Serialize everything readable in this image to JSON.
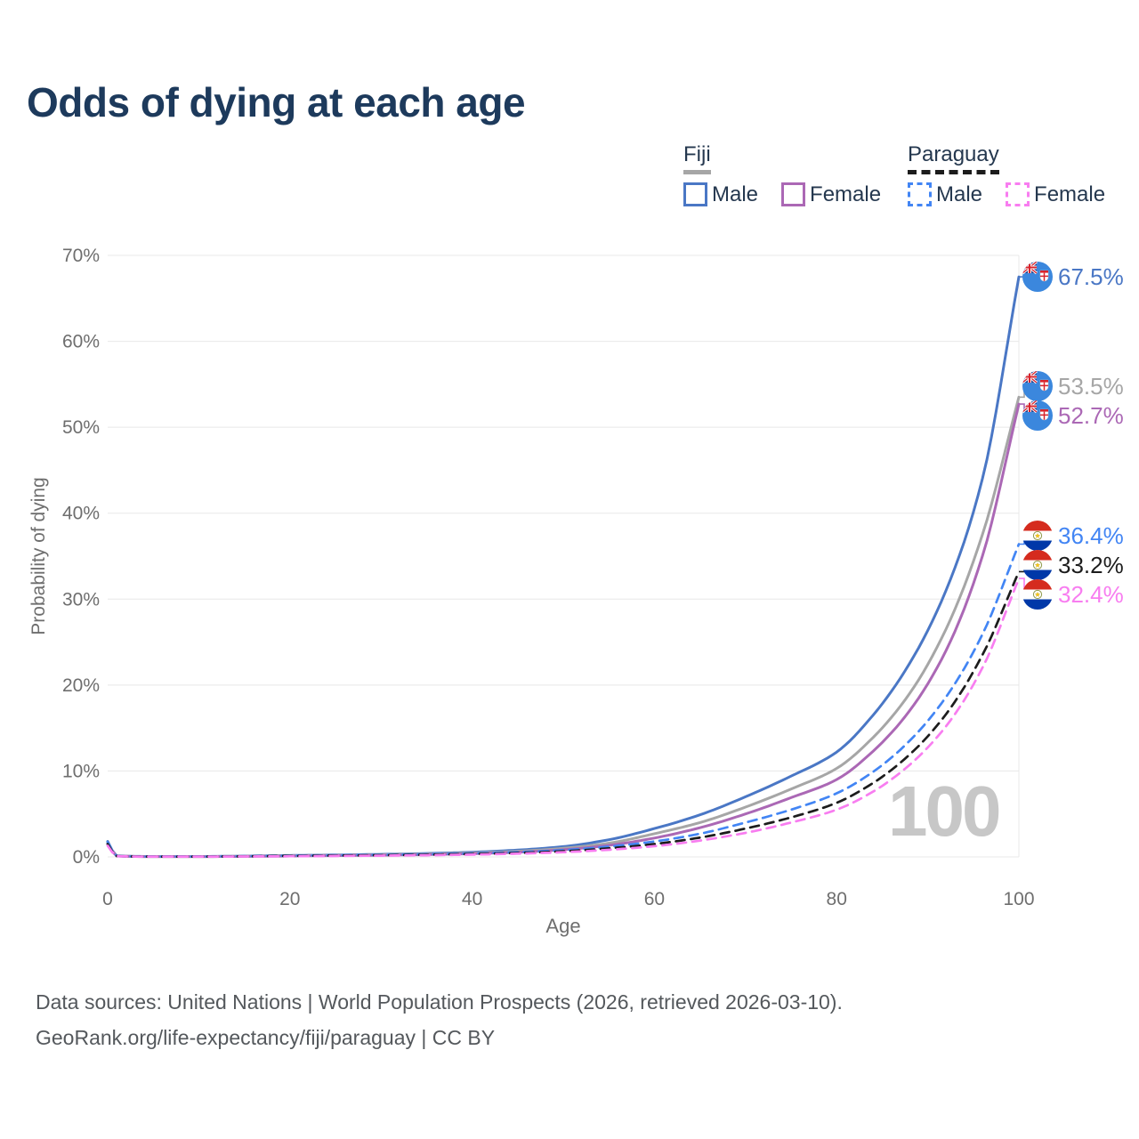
{
  "title": "Odds of dying at each age",
  "watermark": "100",
  "colors": {
    "title": "#1d3a5c",
    "axis_text": "#6e6e6e",
    "grid": "#e8e8e8",
    "legend_text": "#25384f",
    "watermark": "#c7c7c7",
    "footer_text": "#54585c",
    "fiji_male": "#4a77c5",
    "fiji_total": "#a6a6a6",
    "fiji_female": "#ab68b5",
    "paraguay_male": "#4285f4",
    "paraguay_total": "#1c1c1c",
    "paraguay_female": "#f87df0"
  },
  "legend": {
    "groups": [
      {
        "label": "Fiji",
        "line_style": "solid",
        "underline_color_key": "fiji_total",
        "items": [
          {
            "label": "Male",
            "color_key": "fiji_male",
            "dashed": false
          },
          {
            "label": "Female",
            "color_key": "fiji_female",
            "dashed": false
          }
        ]
      },
      {
        "label": "Paraguay",
        "line_style": "dashed",
        "underline_color_key": "paraguay_total",
        "items": [
          {
            "label": "Male",
            "color_key": "paraguay_male",
            "dashed": true
          },
          {
            "label": "Female",
            "color_key": "paraguay_female",
            "dashed": true
          }
        ]
      }
    ]
  },
  "axes": {
    "y_label": "Probability of dying",
    "x_label": "Age",
    "y_ticks": [
      "70%",
      "60%",
      "50%",
      "40%",
      "30%",
      "20%",
      "10%",
      "0%"
    ],
    "x_ticks": [
      "0",
      "20",
      "40",
      "60",
      "80",
      "100"
    ]
  },
  "annotations": [
    {
      "label": "67.5%",
      "series": "fiji_male",
      "country": "fiji"
    },
    {
      "label": "53.5%",
      "series": "fiji_total",
      "country": "fiji"
    },
    {
      "label": "52.7%",
      "series": "fiji_female",
      "country": "fiji"
    },
    {
      "label": "36.4%",
      "series": "paraguay_male",
      "country": "paraguay"
    },
    {
      "label": "33.2%",
      "series": "paraguay_total",
      "country": "paraguay"
    },
    {
      "label": "32.4%",
      "series": "paraguay_female",
      "country": "paraguay"
    }
  ],
  "footer": {
    "line1": "Data sources: United Nations | World Population Prospects (2026, retrieved 2026-03-10).",
    "line2": "GeoRank.org/life-expectancy/fiji/paraguay | CC BY"
  },
  "chart_data": {
    "type": "line",
    "title": "Odds of dying at each age",
    "xlabel": "Age",
    "ylabel": "Probability of dying",
    "xlim": [
      0,
      100
    ],
    "ylim": [
      0,
      70
    ],
    "y_unit": "%",
    "grid": "horizontal",
    "legend_position": "top-right",
    "x": [
      0,
      1,
      5,
      10,
      15,
      20,
      25,
      30,
      35,
      40,
      45,
      50,
      55,
      60,
      65,
      70,
      75,
      80,
      84,
      88,
      92,
      96,
      100
    ],
    "series": [
      {
        "key": "fiji_male",
        "name": "Fiji Male",
        "country": "Fiji",
        "sex": "male",
        "dash": false,
        "end_label": "67.5%",
        "values": [
          1.8,
          0.12,
          0.05,
          0.05,
          0.1,
          0.17,
          0.23,
          0.3,
          0.4,
          0.55,
          0.8,
          1.2,
          2.0,
          3.3,
          4.9,
          7.0,
          9.4,
          12.2,
          16.5,
          22.5,
          31.0,
          44.0,
          67.5
        ]
      },
      {
        "key": "fiji_total",
        "name": "Fiji Both sexes",
        "country": "Fiji",
        "sex": "total",
        "dash": false,
        "end_label": "53.5%",
        "values": [
          1.6,
          0.11,
          0.04,
          0.04,
          0.08,
          0.14,
          0.19,
          0.25,
          0.33,
          0.46,
          0.66,
          1.0,
          1.6,
          2.7,
          4.0,
          5.8,
          7.9,
          10.3,
          13.9,
          19.0,
          26.5,
          37.5,
          53.5
        ]
      },
      {
        "key": "fiji_female",
        "name": "Fiji Female",
        "country": "Fiji",
        "sex": "female",
        "dash": false,
        "end_label": "52.7%",
        "values": [
          1.5,
          0.1,
          0.04,
          0.04,
          0.06,
          0.1,
          0.15,
          0.2,
          0.27,
          0.38,
          0.55,
          0.84,
          1.35,
          2.2,
          3.4,
          5.0,
          6.9,
          9.0,
          12.3,
          17.0,
          24.0,
          35.0,
          52.7
        ]
      },
      {
        "key": "paraguay_male",
        "name": "Paraguay Male",
        "country": "Paraguay",
        "sex": "male",
        "dash": true,
        "end_label": "36.4%",
        "values": [
          1.7,
          0.11,
          0.04,
          0.04,
          0.09,
          0.15,
          0.2,
          0.24,
          0.31,
          0.41,
          0.56,
          0.8,
          1.2,
          1.8,
          2.7,
          4.0,
          5.5,
          7.4,
          9.9,
          13.5,
          18.6,
          25.9,
          36.4
        ]
      },
      {
        "key": "paraguay_total",
        "name": "Paraguay Both sexes",
        "country": "Paraguay",
        "sex": "total",
        "dash": true,
        "end_label": "33.2%",
        "values": [
          1.5,
          0.1,
          0.035,
          0.035,
          0.07,
          0.12,
          0.16,
          0.2,
          0.26,
          0.34,
          0.46,
          0.66,
          1.0,
          1.5,
          2.25,
          3.3,
          4.6,
          6.3,
          8.6,
          11.9,
          16.6,
          23.5,
          33.2
        ]
      },
      {
        "key": "paraguay_female",
        "name": "Paraguay Female",
        "country": "Paraguay",
        "sex": "female",
        "dash": true,
        "end_label": "32.4%",
        "values": [
          1.3,
          0.09,
          0.03,
          0.03,
          0.05,
          0.08,
          0.11,
          0.15,
          0.2,
          0.27,
          0.38,
          0.55,
          0.83,
          1.25,
          1.9,
          2.8,
          4.0,
          5.5,
          7.6,
          10.7,
          15.2,
          22.0,
          32.4
        ]
      }
    ]
  }
}
